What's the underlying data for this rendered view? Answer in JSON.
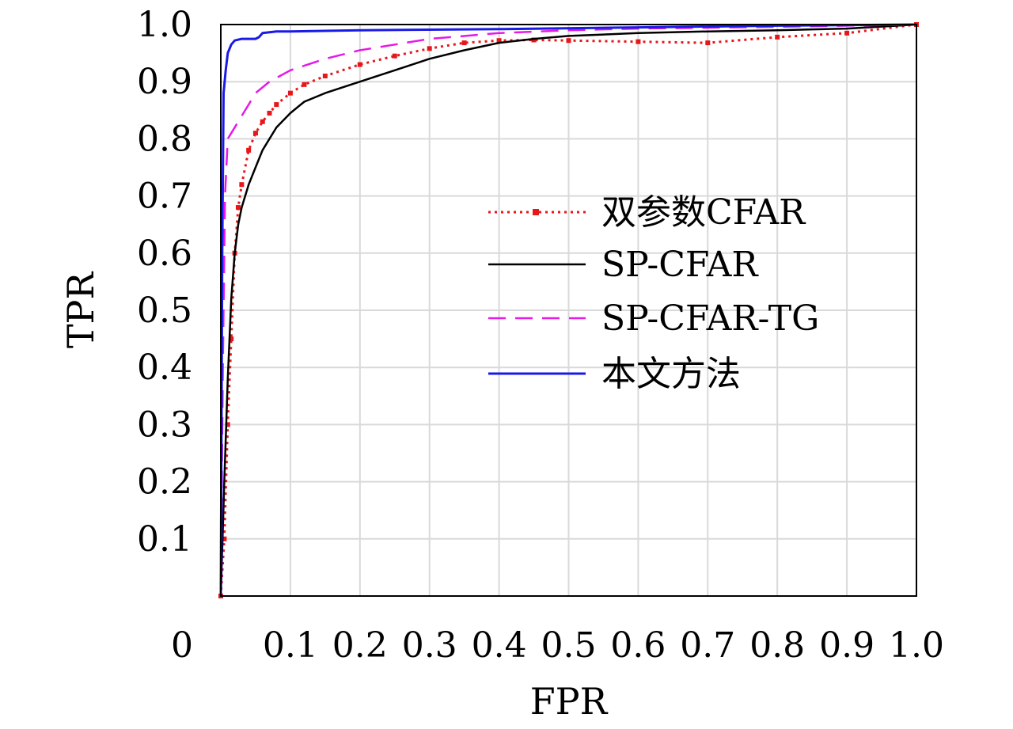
{
  "chart_data": {
    "type": "line",
    "title": "",
    "xlabel": "FPR",
    "ylabel": "TPR",
    "xlim": [
      0,
      1.0
    ],
    "ylim": [
      0,
      1.0
    ],
    "origin_label": "0",
    "xticks": [
      0.1,
      0.2,
      0.3,
      0.4,
      0.5,
      0.6,
      0.7,
      0.8,
      0.9,
      1.0
    ],
    "xtick_labels": [
      "0.1",
      "0.2",
      "0.3",
      "0.4",
      "0.5",
      "0.6",
      "0.7",
      "0.8",
      "0.9",
      "1.0"
    ],
    "yticks": [
      0.1,
      0.2,
      0.3,
      0.4,
      0.5,
      0.6,
      0.7,
      0.8,
      0.9,
      1.0
    ],
    "ytick_labels": [
      "0.1",
      "0.2",
      "0.3",
      "0.4",
      "0.5",
      "0.6",
      "0.7",
      "0.8",
      "0.9",
      "1.0"
    ],
    "grid": true,
    "legend_position": "center-right",
    "series": [
      {
        "name": "双参数CFAR",
        "color": "#e8161a",
        "style": "dotted-marker",
        "x": [
          0,
          0.005,
          0.01,
          0.015,
          0.02,
          0.025,
          0.03,
          0.04,
          0.05,
          0.06,
          0.07,
          0.08,
          0.1,
          0.12,
          0.15,
          0.2,
          0.25,
          0.3,
          0.35,
          0.4,
          0.45,
          0.5,
          0.6,
          0.7,
          0.8,
          0.9,
          1.0
        ],
        "y": [
          0,
          0.1,
          0.3,
          0.45,
          0.6,
          0.68,
          0.72,
          0.78,
          0.81,
          0.83,
          0.845,
          0.86,
          0.88,
          0.895,
          0.91,
          0.93,
          0.945,
          0.958,
          0.968,
          0.972,
          0.973,
          0.972,
          0.97,
          0.968,
          0.978,
          0.985,
          1.0
        ]
      },
      {
        "name": "SP-CFAR",
        "color": "#000000",
        "style": "solid",
        "x": [
          0,
          0.005,
          0.01,
          0.015,
          0.02,
          0.025,
          0.03,
          0.04,
          0.05,
          0.06,
          0.07,
          0.08,
          0.1,
          0.12,
          0.15,
          0.2,
          0.25,
          0.3,
          0.35,
          0.4,
          0.45,
          0.5,
          0.6,
          0.7,
          0.8,
          0.9,
          1.0
        ],
        "y": [
          0,
          0.2,
          0.38,
          0.52,
          0.6,
          0.65,
          0.68,
          0.72,
          0.75,
          0.78,
          0.8,
          0.82,
          0.845,
          0.865,
          0.88,
          0.9,
          0.92,
          0.94,
          0.955,
          0.968,
          0.975,
          0.98,
          0.985,
          0.988,
          0.99,
          0.993,
          1.0
        ]
      },
      {
        "name": "SP-CFAR-TG",
        "color": "#e619e6",
        "style": "dashed",
        "x": [
          0,
          0.003,
          0.006,
          0.01,
          0.015,
          0.02,
          0.03,
          0.04,
          0.05,
          0.07,
          0.1,
          0.15,
          0.2,
          0.25,
          0.3,
          0.4,
          0.5,
          0.6,
          0.8,
          1.0
        ],
        "y": [
          0,
          0.4,
          0.7,
          0.8,
          0.81,
          0.82,
          0.84,
          0.86,
          0.88,
          0.9,
          0.92,
          0.94,
          0.955,
          0.965,
          0.975,
          0.985,
          0.99,
          0.993,
          0.996,
          1.0
        ]
      },
      {
        "name": "本文方法",
        "color": "#1a1ae6",
        "style": "solid",
        "x": [
          0,
          0.002,
          0.004,
          0.007,
          0.01,
          0.015,
          0.02,
          0.03,
          0.05,
          0.055,
          0.06,
          0.08,
          0.1,
          0.2,
          0.4,
          0.6,
          0.8,
          1.0
        ],
        "y": [
          0,
          0.6,
          0.88,
          0.92,
          0.95,
          0.965,
          0.972,
          0.975,
          0.975,
          0.978,
          0.985,
          0.988,
          0.988,
          0.99,
          0.992,
          0.995,
          0.998,
          1.0
        ]
      }
    ]
  }
}
